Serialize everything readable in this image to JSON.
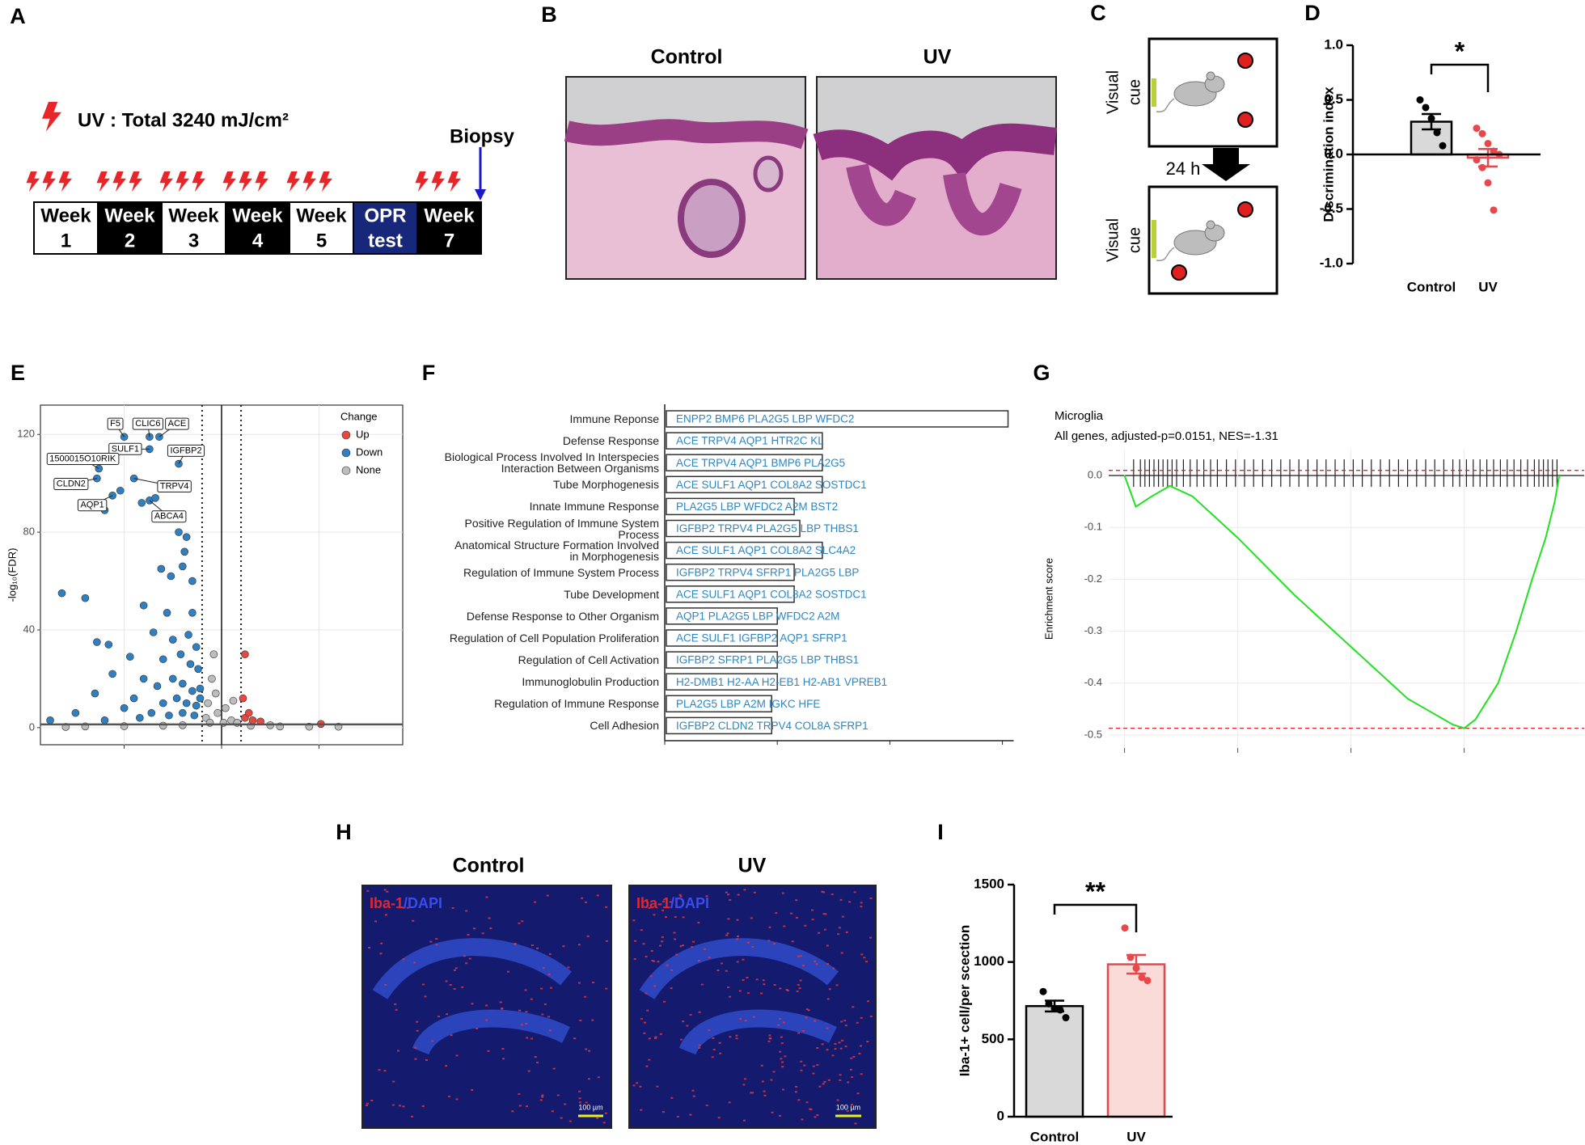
{
  "panel_labels": [
    "A",
    "B",
    "C",
    "D",
    "E",
    "F",
    "G",
    "H",
    "I"
  ],
  "panel_a": {
    "uv_text": "UV : Total 3240 mJ/cm²",
    "biopsy": "Biopsy",
    "schedule": [
      [
        "Week",
        "1"
      ],
      [
        "Week",
        "2"
      ],
      [
        "Week",
        "3"
      ],
      [
        "Week",
        "4"
      ],
      [
        "Week",
        "5"
      ],
      [
        "OPR",
        "test"
      ],
      [
        "Week",
        "7"
      ]
    ]
  },
  "panel_b": {
    "titles": [
      "Control",
      "UV"
    ]
  },
  "panel_c": {
    "cue": [
      "Visual",
      "cue"
    ],
    "interval": "24 h"
  },
  "panel_h": {
    "titles": [
      "Control",
      "UV"
    ],
    "stain": [
      "Iba-1",
      "/DAPI"
    ],
    "scale_bar": "100 µm"
  },
  "chart_data": [
    {
      "type": "bar",
      "ylabel": "Discrimination index",
      "categories": [
        "Control",
        "UV"
      ],
      "values": [
        0.3,
        -0.03
      ],
      "errors": [
        0.07,
        0.08
      ],
      "points": [
        [
          0.5,
          0.43,
          0.33,
          0.2,
          0.08
        ],
        [
          0.24,
          0.19,
          0.1,
          0.03,
          0,
          -0.05,
          -0.12,
          -0.26,
          -0.51
        ]
      ],
      "colors": [
        "#d9d9d9",
        "#fadbd8"
      ],
      "edge_colors": [
        "#000000",
        "#e8474c"
      ],
      "ylim": [
        -1,
        1
      ],
      "yticks": [
        {
          "value": -1,
          "label": "-1.0"
        },
        -0.5,
        {
          "value": 0,
          "label": "0.0"
        },
        0.5,
        {
          "value": 1,
          "label": "1.0"
        }
      ],
      "significance": "*"
    },
    {
      "type": "scatter",
      "ylabel": "-log₁₀(FDR)",
      "legend_title": "Change",
      "xlim": [
        -9.3,
        9.3
      ],
      "ylim": [
        -7,
        132
      ],
      "xticks": [
        -5,
        0,
        5
      ],
      "yticks": [
        0,
        40,
        80,
        120
      ],
      "grid": true,
      "dotted_lines_x": [
        -1,
        1
      ],
      "solid_line_x": 0,
      "solid_line_y": 1.3,
      "series": [
        {
          "name": "Up",
          "color": "#e5483f",
          "x": [
            1.2,
            1.1,
            1.2,
            1.6,
            2.0,
            1.4,
            5.1
          ],
          "y": [
            30,
            12,
            4,
            3,
            2.5,
            6,
            1.5
          ]
        },
        {
          "name": "Down",
          "color": "#2f7fc1",
          "x": [
            -5.0,
            -3.7,
            -3.2,
            -3.7,
            -2.2,
            -6.3,
            -6.4,
            -4.5,
            -5.6,
            -3.7,
            -3.4,
            -5.2,
            -6.0,
            -4.1,
            -2.2,
            -1.8,
            -1.9,
            -3.1,
            -2.0,
            -2.6,
            -1.5,
            -8.2,
            -7.0,
            -4.0,
            -2.8,
            -1.5,
            -6.4,
            -5.8,
            -3.5,
            -2.5,
            -1.7,
            -1.3,
            -4.7,
            -3.0,
            -2.1,
            -1.6,
            -1.2,
            -5.6,
            -4.0,
            -3.3,
            -2.5,
            -2.0,
            -1.5,
            -1.1,
            -6.5,
            -4.5,
            -3.0,
            -2.3,
            -1.8,
            -1.3,
            -1.1,
            -7.5,
            -5.0,
            -3.6,
            -2.7,
            -2.0,
            -1.4,
            -8.8,
            -6.0,
            -4.2
          ],
          "y": [
            119,
            119,
            119,
            114,
            108,
            106,
            102,
            102,
            95,
            93,
            94,
            97,
            89,
            92,
            80,
            78,
            72,
            65,
            66,
            62,
            60,
            55,
            53,
            50,
            47,
            47,
            35,
            34,
            39,
            36,
            38,
            33,
            29,
            28,
            30,
            26,
            24,
            22,
            20,
            17,
            20,
            18,
            15,
            16,
            14,
            12,
            10,
            12,
            10,
            9,
            12,
            6,
            8,
            6,
            5,
            6,
            5,
            3,
            3,
            4
          ],
          "labels": [
            "F5",
            "CLIC6",
            "ACE",
            "SULF1",
            "IGFBP2",
            "1500015O10RIK",
            "CLDN2",
            "TRPV4",
            "AQP1",
            "ABCA4",
            null,
            null,
            null,
            null,
            null,
            null,
            null,
            null,
            null,
            null,
            null,
            null,
            null,
            null,
            null,
            null,
            null,
            null,
            null,
            null,
            null,
            null,
            null,
            null,
            null,
            null,
            null,
            null,
            null,
            null,
            null,
            null,
            null,
            null,
            null,
            null,
            null,
            null,
            null,
            null,
            null,
            null,
            null,
            null,
            null,
            null,
            null,
            null,
            null,
            null
          ]
        },
        {
          "name": "None",
          "color": "#bdbdbd",
          "x": [
            -0.5,
            -0.3,
            -0.7,
            -0.2,
            0.2,
            0.5,
            0.8,
            -0.8,
            1.5,
            3,
            4.5,
            -3,
            -5,
            -7,
            -8,
            -2,
            0.1,
            0.6,
            -0.4,
            -0.6,
            2.5,
            6
          ],
          "y": [
            20,
            14,
            10,
            6,
            8,
            3,
            2,
            4,
            0.8,
            0.5,
            0.4,
            0.8,
            0.6,
            0.5,
            0.3,
            1,
            2,
            11,
            30,
            2,
            1,
            0.4
          ]
        }
      ]
    },
    {
      "type": "barh",
      "categories": [
        "Immune Reponse",
        "Defense Response",
        "Biological Process Involved In Interspecies\nInteraction Between Organisms",
        "Tube Morphogenesis",
        "Innate Immune Response",
        "Positive Regulation of Immune System\nProcess",
        "Anatomical Structure Formation Involved\nin Morphogenesis",
        "Regulation of Immune System Process",
        "Tube Development",
        "Defense Response to Other Organism",
        "Regulation of Cell Population Proliferation",
        "Regulation of Cell Activation",
        "Immunoglobulin Production",
        "Regulation of Immune Response",
        "Cell Adhesion"
      ],
      "values": [
        6.1,
        2.8,
        2.8,
        2.8,
        2.3,
        2.4,
        2.8,
        2.3,
        2.3,
        2.0,
        2.0,
        2.0,
        2.0,
        1.9,
        1.9
      ],
      "genes": [
        "ENPP2 BMP6 PLA2G5 LBP WFDC2",
        "ACE TRPV4 AQP1 HTR2C KL",
        "ACE TRPV4 AQP1 BMP6 PLA2G5",
        "ACE SULF1 AQP1 COL8A2 SOSTDC1",
        "PLA2G5 LBP WFDC2 A2M BST2",
        "IGFBP2 TRPV4 PLA2G5 LBP THBS1",
        "ACE SULF1 AQP1 COL8A2 SLC4A2",
        "IGFBP2 TRPV4 SFRP1 PLA2G5 LBP",
        "ACE SULF1 AQP1 COL8A2 SOSTDC1",
        "AQP1 PLA2G5 LBP WFDC2 A2M",
        "ACE SULF1 IGFBP2 AQP1 SFRP1",
        "IGFBP2 SFRP1 PLA2G5 LBP THBS1",
        "H2-DMB1 H2-AA H2-EB1 H2-AB1 VPREB1",
        "PLA2G5 LBP A2M IGKC HFE",
        "IGFBP2 CLDN2 TRPV4 COL8A SFRP1"
      ],
      "color": "#ffffff",
      "edge_color": "#333333",
      "text_color": "#2e86c1",
      "xlim": [
        0,
        6.2
      ],
      "xticks": [
        0,
        2,
        4,
        6
      ]
    },
    {
      "type": "line",
      "title": "Microglia",
      "subtitle": "All genes, adjusted-p=0.0151, NES=-1.31",
      "ylabel": "Enrichment score",
      "x": [
        0,
        500,
        1200,
        2000,
        3000,
        5000,
        7500,
        10000,
        12500,
        14500,
        15000,
        15500,
        16500,
        17300,
        18000,
        18600,
        19000,
        19200
      ],
      "values": [
        0,
        -0.06,
        -0.04,
        -0.02,
        -0.04,
        -0.12,
        -0.23,
        -0.33,
        -0.43,
        -0.48,
        -0.487,
        -0.47,
        -0.4,
        -0.3,
        -0.2,
        -0.12,
        -0.05,
        0
      ],
      "hits": [
        400,
        700,
        900,
        1100,
        1300,
        1500,
        1700,
        1900,
        2100,
        2300,
        2600,
        2900,
        3200,
        3500,
        3800,
        4100,
        4500,
        4900,
        5300,
        5700,
        6100,
        6500,
        6900,
        7300,
        7700,
        8100,
        8500,
        8900,
        9300,
        9700,
        10100,
        10500,
        10900,
        11300,
        11700,
        12100,
        12500,
        12900,
        13300,
        13700,
        14100,
        14500,
        14800,
        15100,
        15400,
        15700,
        16000,
        16300,
        16600,
        16900,
        17200,
        17500,
        17800,
        18100,
        18300,
        18500,
        18700,
        18900,
        19100
      ],
      "dashed_lines": [
        0.01,
        -0.487
      ],
      "color": "#22e022",
      "dashed_color": "#e0262a",
      "xlim": [
        -700,
        20300
      ],
      "ylim": [
        -0.525,
        0.05
      ],
      "xticks": [
        0,
        5000,
        10000,
        15000
      ],
      "yticks": [
        {
          "value": 0,
          "label": "0.0"
        },
        -0.1,
        -0.2,
        -0.3,
        -0.4,
        -0.5
      ],
      "grid": true
    },
    {
      "type": "bar",
      "ylabel": "Iba-1+ cell/per scection",
      "categories": [
        "Control",
        "UV"
      ],
      "values": [
        715,
        985
      ],
      "errors": [
        35,
        60
      ],
      "points": [
        [
          809,
          730,
          700,
          690,
          640
        ],
        [
          1220,
          1030,
          960,
          900,
          880
        ]
      ],
      "colors": [
        "#d9d9d9",
        "#fadbd8"
      ],
      "edge_colors": [
        "#000000",
        "#e8474c"
      ],
      "ylim": [
        0,
        1500
      ],
      "yticks": [
        0,
        500,
        1000,
        1500
      ],
      "significance": "**"
    }
  ]
}
